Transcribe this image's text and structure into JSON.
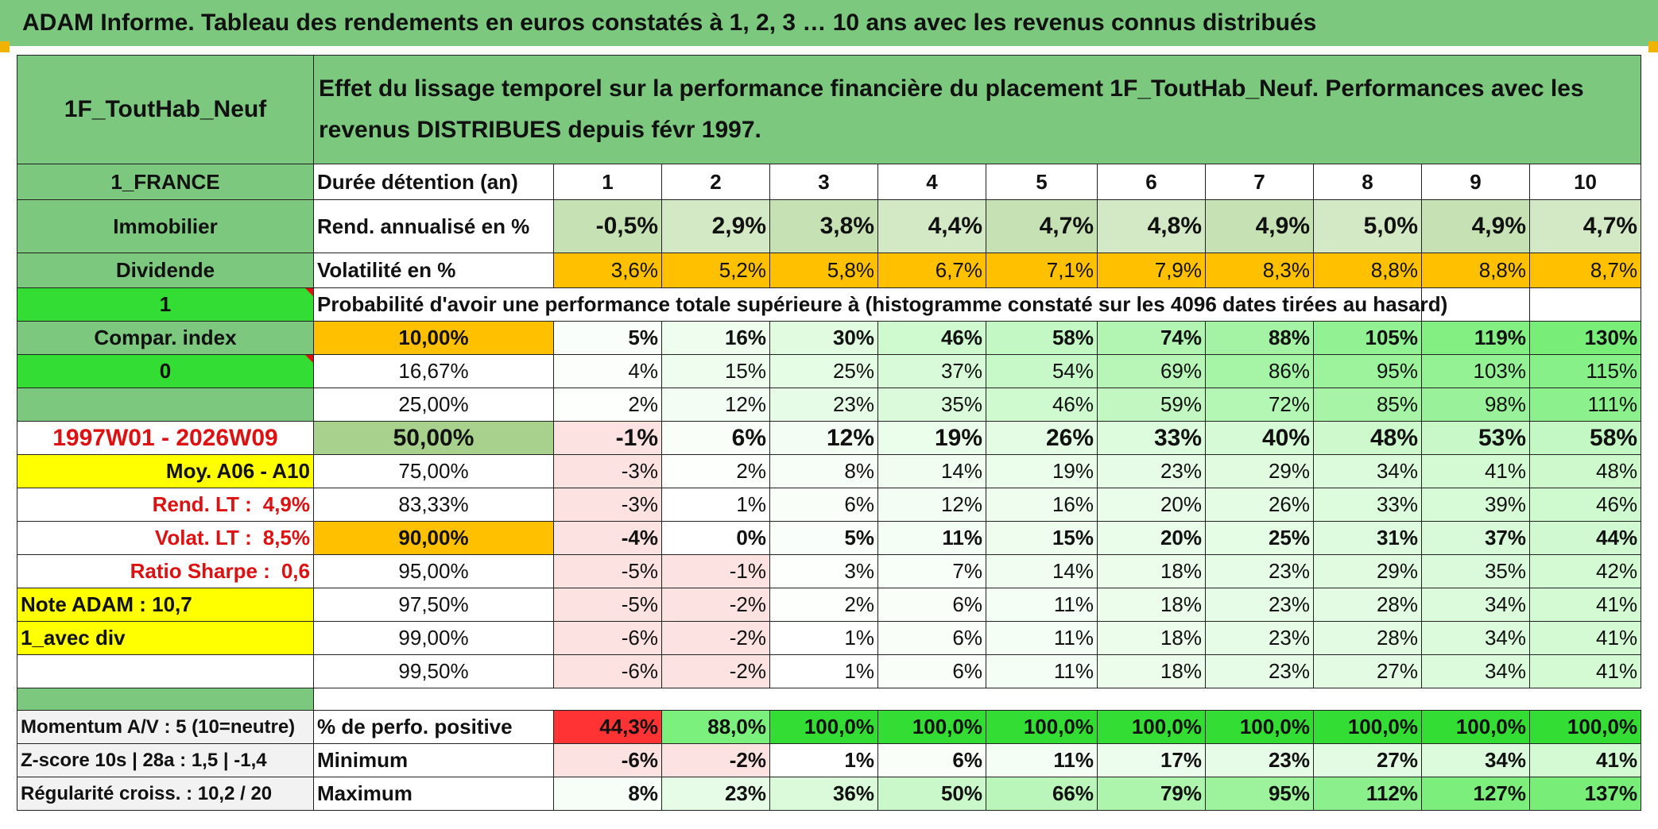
{
  "title": "ADAM Informe. Tableau des rendements en euros constatés à 1, 2, 3 … 10 ans avec les revenus connus distribués",
  "fund_name": "1F_ToutHab_Neuf",
  "header_text": "Effet du lissage temporel sur la performance financière du placement 1F_ToutHab_Neuf. Performances avec les revenus DISTRIBUES depuis févr 1997.",
  "left": {
    "country": "1_FRANCE",
    "category": "Immobilier",
    "type": "Dividende",
    "flag1": "1",
    "compar": "Compar. index",
    "flag2": "0",
    "period": "1997W01 - 2026W09",
    "moy": "Moy. A06 - A10",
    "rend_label": "Rend. LT :",
    "rend_value": "4,9%",
    "volat_label": "Volat. LT :",
    "volat_value": "8,5%",
    "sharpe_label": "Ratio Sharpe :",
    "sharpe_value": "0,6",
    "note": "Note ADAM : 10,7",
    "avec_div": "1_avec div",
    "momentum": "Momentum A/V : 5 (10=neutre)",
    "zscore": "Z-score 10s | 28a : 1,5 | -1,4",
    "regularite": "Régularité croiss. : 10,2 / 20"
  },
  "labels": {
    "duree": "Durée détention (an)",
    "rend": "Rend. annualisé en %",
    "volat": "Volatilité en %",
    "proba": "Probabilité d'avoir une performance totale supérieure à (histogramme constaté sur les 4096 dates tirées au hasard)",
    "perf_pos": "% de perfo. positive",
    "minimum": "Minimum",
    "maximum": "Maximum"
  },
  "years": [
    "1",
    "2",
    "3",
    "4",
    "5",
    "6",
    "7",
    "8",
    "9",
    "10"
  ],
  "rend": [
    "-0,5%",
    "2,9%",
    "3,8%",
    "4,4%",
    "4,7%",
    "4,8%",
    "4,9%",
    "5,0%",
    "4,9%",
    "4,7%"
  ],
  "volat": [
    "3,6%",
    "5,2%",
    "5,8%",
    "6,7%",
    "7,1%",
    "7,9%",
    "8,3%",
    "8,8%",
    "8,8%",
    "8,7%"
  ],
  "prob_rows": [
    {
      "p": "10,00%",
      "v": [
        "5%",
        "16%",
        "30%",
        "46%",
        "58%",
        "74%",
        "88%",
        "105%",
        "119%",
        "130%"
      ]
    },
    {
      "p": "16,67%",
      "v": [
        "4%",
        "15%",
        "25%",
        "37%",
        "54%",
        "69%",
        "86%",
        "95%",
        "103%",
        "115%"
      ]
    },
    {
      "p": "25,00%",
      "v": [
        "2%",
        "12%",
        "23%",
        "35%",
        "46%",
        "59%",
        "72%",
        "85%",
        "98%",
        "111%"
      ]
    },
    {
      "p": "50,00%",
      "v": [
        "-1%",
        "6%",
        "12%",
        "19%",
        "26%",
        "33%",
        "40%",
        "48%",
        "53%",
        "58%"
      ]
    },
    {
      "p": "75,00%",
      "v": [
        "-3%",
        "2%",
        "8%",
        "14%",
        "19%",
        "23%",
        "29%",
        "34%",
        "41%",
        "48%"
      ]
    },
    {
      "p": "83,33%",
      "v": [
        "-3%",
        "1%",
        "6%",
        "12%",
        "16%",
        "20%",
        "26%",
        "33%",
        "39%",
        "46%"
      ]
    },
    {
      "p": "90,00%",
      "v": [
        "-4%",
        "0%",
        "5%",
        "11%",
        "15%",
        "20%",
        "25%",
        "31%",
        "37%",
        "44%"
      ]
    },
    {
      "p": "95,00%",
      "v": [
        "-5%",
        "-1%",
        "3%",
        "7%",
        "14%",
        "18%",
        "23%",
        "29%",
        "35%",
        "42%"
      ]
    },
    {
      "p": "97,50%",
      "v": [
        "-5%",
        "-2%",
        "2%",
        "6%",
        "11%",
        "18%",
        "23%",
        "28%",
        "34%",
        "41%"
      ]
    },
    {
      "p": "99,00%",
      "v": [
        "-6%",
        "-2%",
        "1%",
        "6%",
        "11%",
        "18%",
        "23%",
        "28%",
        "34%",
        "41%"
      ]
    },
    {
      "p": "99,50%",
      "v": [
        "-6%",
        "-2%",
        "1%",
        "6%",
        "11%",
        "18%",
        "23%",
        "27%",
        "34%",
        "41%"
      ]
    }
  ],
  "perf_pos": [
    "44,3%",
    "88,0%",
    "100,0%",
    "100,0%",
    "100,0%",
    "100,0%",
    "100,0%",
    "100,0%",
    "100,0%",
    "100,0%"
  ],
  "minimum": [
    "-6%",
    "-2%",
    "1%",
    "6%",
    "11%",
    "17%",
    "23%",
    "27%",
    "34%",
    "41%"
  ],
  "maximum": [
    "8%",
    "23%",
    "36%",
    "50%",
    "66%",
    "79%",
    "95%",
    "112%",
    "127%",
    "137%"
  ],
  "colors": {
    "header_green": "#7cc87e",
    "lime": "#33dd33",
    "yellow": "#ffff00",
    "orange": "#ffc000",
    "olive": "#a9d18e",
    "red_text": "#dd1111",
    "negative_bg": "#fde2e2",
    "red_cell": "#ff3333"
  }
}
